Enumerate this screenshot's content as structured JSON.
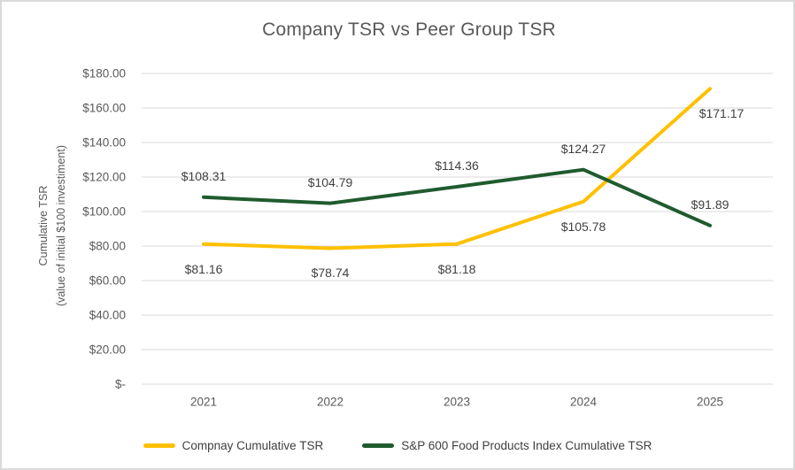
{
  "chart_data": {
    "type": "line",
    "title": "Company TSR vs Peer Group TSR",
    "ylabel_line1": "Cumulative TSR",
    "ylabel_line2": "(value of initial $100 investiment)",
    "x_categories": [
      "2021",
      "2022",
      "2023",
      "2024",
      "2025"
    ],
    "y_ticks": [
      {
        "value": 180,
        "label": "$180.00"
      },
      {
        "value": 160,
        "label": "$160.00"
      },
      {
        "value": 140,
        "label": "$140.00"
      },
      {
        "value": 120,
        "label": "$120.00"
      },
      {
        "value": 100,
        "label": "$100.00"
      },
      {
        "value": 80,
        "label": "$80.00"
      },
      {
        "value": 60,
        "label": "$60.00"
      },
      {
        "value": 40,
        "label": "$40.00"
      },
      {
        "value": 20,
        "label": "$20.00"
      },
      {
        "value": 0,
        "label": "$-"
      }
    ],
    "ylim": [
      0,
      180
    ],
    "grid": "horizontal",
    "legend_position": "bottom",
    "series": [
      {
        "name": "Compnay Cumulative TSR",
        "color": "#FFC000",
        "values": [
          81.16,
          78.74,
          81.18,
          105.78,
          171.17
        ],
        "labels": [
          "$81.16",
          "$78.74",
          "$81.18",
          "$105.78",
          "$171.17"
        ],
        "label_placement": "below"
      },
      {
        "name": "S&P 600 Food Products Index Cumulative TSR",
        "color": "#1F5B2E",
        "values": [
          108.31,
          104.79,
          114.36,
          124.27,
          91.89
        ],
        "labels": [
          "$108.31",
          "$104.79",
          "$114.36",
          "$124.27",
          "$91.89"
        ],
        "label_placement": "above"
      }
    ]
  },
  "colors": {
    "title_text": "#595959",
    "axis_text": "#595959",
    "data_label_text": "#404040",
    "gridline": "#d9d9d9",
    "frame_border": "#d9d9d9",
    "background": "#ffffff"
  }
}
